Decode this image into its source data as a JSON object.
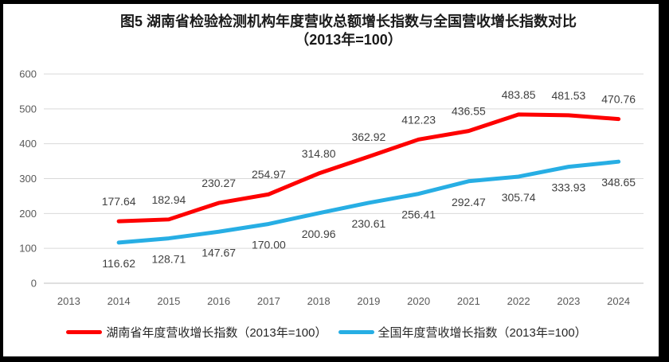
{
  "title": {
    "line1": "图5 湖南省检验检测机构年度营收总额增长指数与全国营收增长指数对比",
    "line2": "（2013年=100）"
  },
  "chart_data": {
    "type": "line",
    "title": "图5 湖南省检验检测机构年度营收总额增长指数与全国营收增长指数对比（2013年=100）",
    "categories": [
      "2013",
      "2014",
      "2015",
      "2016",
      "2017",
      "2018",
      "2019",
      "2020",
      "2021",
      "2022",
      "2023",
      "2024"
    ],
    "series": [
      {
        "id": "hunan",
        "name": "湖南省年度营收增长指数（2013年=100）",
        "color": "#fe0000",
        "start_index": 1,
        "values": [
          177.64,
          182.94,
          230.27,
          254.97,
          314.8,
          362.92,
          412.23,
          436.55,
          483.85,
          481.53,
          470.76
        ],
        "label_position": "above"
      },
      {
        "id": "national",
        "name": "全国年度营收增长指数（2013年=100）",
        "color": "#27aee4",
        "start_index": 1,
        "values": [
          116.62,
          128.71,
          147.67,
          170.0,
          200.96,
          230.61,
          256.41,
          292.47,
          305.74,
          333.93,
          348.65
        ],
        "label_position": "below"
      }
    ],
    "xlabel": "",
    "ylabel": "",
    "ylim": [
      0,
      600
    ],
    "y_tick_step": 100,
    "grid": true,
    "legend_position": "bottom",
    "colors": {
      "grid": "#d9d9d9",
      "axis_zero_line": "#bfbfbf",
      "tick_text": "#595959",
      "data_label_text": "#404040"
    }
  }
}
